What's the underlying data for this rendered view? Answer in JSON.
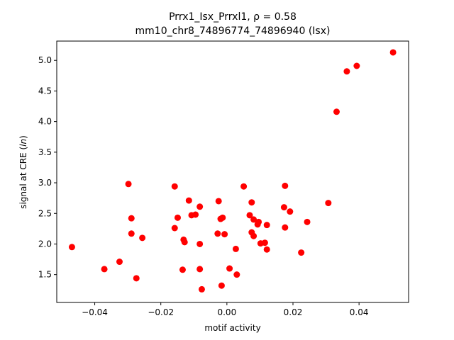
{
  "chart_data": {
    "type": "scatter",
    "title_line1": "Prrx1_Isx_Prrxl1, ",
    "title_rho": "ρ = 0.58",
    "title_line2": "mm10_chr8_74896774_74896940 (Isx)",
    "xlabel": "motif activity",
    "ylabel_prefix": "signal at CRE (",
    "ylabel_italic": "ln",
    "ylabel_suffix": ")",
    "xlim": [
      -0.0515,
      0.055
    ],
    "ylim": [
      1.045,
      5.315
    ],
    "xticks": [
      -0.04,
      -0.02,
      0.0,
      0.02,
      0.04
    ],
    "xtick_labels": [
      "−0.04",
      "−0.02",
      "0.00",
      "0.02",
      "0.04"
    ],
    "yticks": [
      1.5,
      2.0,
      2.5,
      3.0,
      3.5,
      4.0,
      4.5,
      5.0
    ],
    "ytick_labels": [
      "1.5",
      "2.0",
      "2.5",
      "3.0",
      "3.5",
      "4.0",
      "4.5",
      "5.0"
    ],
    "grid": false,
    "marker_color": "#ff0000",
    "points": [
      {
        "x": -0.0469,
        "y": 1.95
      },
      {
        "x": -0.0371,
        "y": 1.59
      },
      {
        "x": -0.0325,
        "y": 1.71
      },
      {
        "x": -0.0298,
        "y": 2.98
      },
      {
        "x": -0.0289,
        "y": 2.42
      },
      {
        "x": -0.0289,
        "y": 2.17
      },
      {
        "x": -0.0274,
        "y": 1.44
      },
      {
        "x": -0.0256,
        "y": 2.1
      },
      {
        "x": -0.0158,
        "y": 2.94
      },
      {
        "x": -0.0158,
        "y": 2.26
      },
      {
        "x": -0.0149,
        "y": 2.43
      },
      {
        "x": -0.0134,
        "y": 1.58
      },
      {
        "x": -0.0131,
        "y": 2.07
      },
      {
        "x": -0.0128,
        "y": 2.03
      },
      {
        "x": -0.0115,
        "y": 2.71
      },
      {
        "x": -0.0107,
        "y": 2.47
      },
      {
        "x": -0.0095,
        "y": 2.48
      },
      {
        "x": -0.0082,
        "y": 2.61
      },
      {
        "x": -0.0082,
        "y": 1.59
      },
      {
        "x": -0.0082,
        "y": 2.0
      },
      {
        "x": -0.0076,
        "y": 1.26
      },
      {
        "x": -0.0028,
        "y": 2.17
      },
      {
        "x": -0.0025,
        "y": 2.7
      },
      {
        "x": -0.0019,
        "y": 2.41
      },
      {
        "x": -0.0016,
        "y": 1.32
      },
      {
        "x": -0.0013,
        "y": 2.43
      },
      {
        "x": -0.0007,
        "y": 2.16
      },
      {
        "x": 0.0008,
        "y": 1.6
      },
      {
        "x": 0.0027,
        "y": 1.92
      },
      {
        "x": 0.003,
        "y": 1.5
      },
      {
        "x": 0.0051,
        "y": 2.94
      },
      {
        "x": 0.0069,
        "y": 2.47
      },
      {
        "x": 0.0075,
        "y": 2.68
      },
      {
        "x": 0.0075,
        "y": 2.19
      },
      {
        "x": 0.0081,
        "y": 2.4
      },
      {
        "x": 0.0081,
        "y": 2.13
      },
      {
        "x": 0.0093,
        "y": 2.32
      },
      {
        "x": 0.0096,
        "y": 2.36
      },
      {
        "x": 0.0102,
        "y": 2.01
      },
      {
        "x": 0.0115,
        "y": 2.02
      },
      {
        "x": 0.0121,
        "y": 1.91
      },
      {
        "x": 0.0121,
        "y": 2.31
      },
      {
        "x": 0.0173,
        "y": 2.6
      },
      {
        "x": 0.0176,
        "y": 2.95
      },
      {
        "x": 0.0176,
        "y": 2.27
      },
      {
        "x": 0.0191,
        "y": 2.53
      },
      {
        "x": 0.0225,
        "y": 1.86
      },
      {
        "x": 0.0243,
        "y": 2.36
      },
      {
        "x": 0.0307,
        "y": 2.67
      },
      {
        "x": 0.0332,
        "y": 4.16
      },
      {
        "x": 0.0363,
        "y": 4.82
      },
      {
        "x": 0.0393,
        "y": 4.91
      },
      {
        "x": 0.0503,
        "y": 5.13
      }
    ]
  }
}
